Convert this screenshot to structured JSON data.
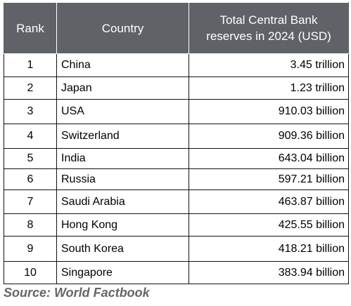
{
  "table": {
    "headers": {
      "rank": "Rank",
      "country": "Country",
      "reserves": "Total Central Bank\nreserves in 2024 (USD)"
    },
    "header_color": "#5f6367",
    "rows": [
      {
        "rank": "1",
        "country": "China",
        "reserves": "3.45 trillion"
      },
      {
        "rank": "2",
        "country": "Japan",
        "reserves": "1.23 trillion"
      },
      {
        "rank": "3",
        "country": "USA",
        "reserves": "910.03 billion"
      },
      {
        "rank": "4",
        "country": "Switzerland",
        "reserves": "909.36 billion"
      },
      {
        "rank": "5",
        "country": "India",
        "reserves": "643.04 billion"
      },
      {
        "rank": "6",
        "country": "Russia",
        "reserves": "597.21 billion"
      },
      {
        "rank": "7",
        "country": "Saudi Arabia",
        "reserves": "463.87 billion"
      },
      {
        "rank": "8",
        "country": "Hong Kong",
        "reserves": "425.55 billion"
      },
      {
        "rank": "9",
        "country": "South Korea",
        "reserves": "418.21 billion"
      },
      {
        "rank": "10",
        "country": "Singapore",
        "reserves": "383.94 billion"
      }
    ]
  },
  "source": "Source: World Factbook"
}
